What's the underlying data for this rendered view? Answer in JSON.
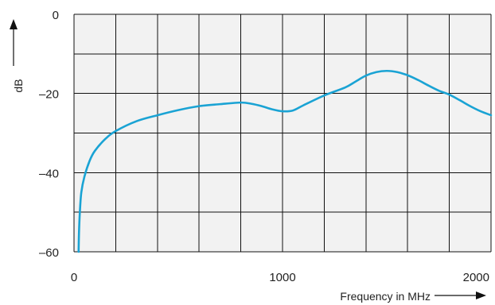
{
  "chart_data": {
    "type": "line",
    "xlabel": "Frequency in MHz",
    "ylabel": "dB",
    "xlim": [
      0,
      2000
    ],
    "ylim": [
      -60,
      0
    ],
    "x_ticks": [
      0,
      1000,
      2000
    ],
    "y_ticks": [
      0,
      -20,
      -40,
      -60
    ],
    "x_tick_labels": [
      "0",
      "1000",
      "2000"
    ],
    "y_tick_labels": [
      "0",
      "–20",
      "–40",
      "–60"
    ],
    "grid": true,
    "grid_x_step": 200,
    "grid_y_step": 10,
    "series": [
      {
        "color": "#1aa3d4",
        "x": [
          22,
          24,
          28,
          35,
          50,
          75,
          100,
          150,
          200,
          300,
          400,
          500,
          600,
          700,
          800,
          850,
          900,
          950,
          1000,
          1050,
          1100,
          1200,
          1300,
          1350,
          1400,
          1450,
          1500,
          1550,
          1600,
          1650,
          1700,
          1750,
          1800,
          1850,
          1900,
          1950,
          2000
        ],
        "y": [
          -60,
          -55,
          -50,
          -45,
          -41,
          -37,
          -34.5,
          -31.5,
          -29.5,
          -27,
          -25.5,
          -24.2,
          -23.2,
          -22.7,
          -22.3,
          -22.6,
          -23.2,
          -24,
          -24.5,
          -24.3,
          -23,
          -20.5,
          -18.5,
          -17,
          -15.5,
          -14.6,
          -14.3,
          -14.6,
          -15.4,
          -16.6,
          -18,
          -19.3,
          -20.3,
          -21.7,
          -23.2,
          -24.5,
          -25.5
        ]
      }
    ],
    "colors": {
      "plot_background": "#f2f2f2",
      "grid": "#111111",
      "line": "#1aa3d4"
    }
  }
}
